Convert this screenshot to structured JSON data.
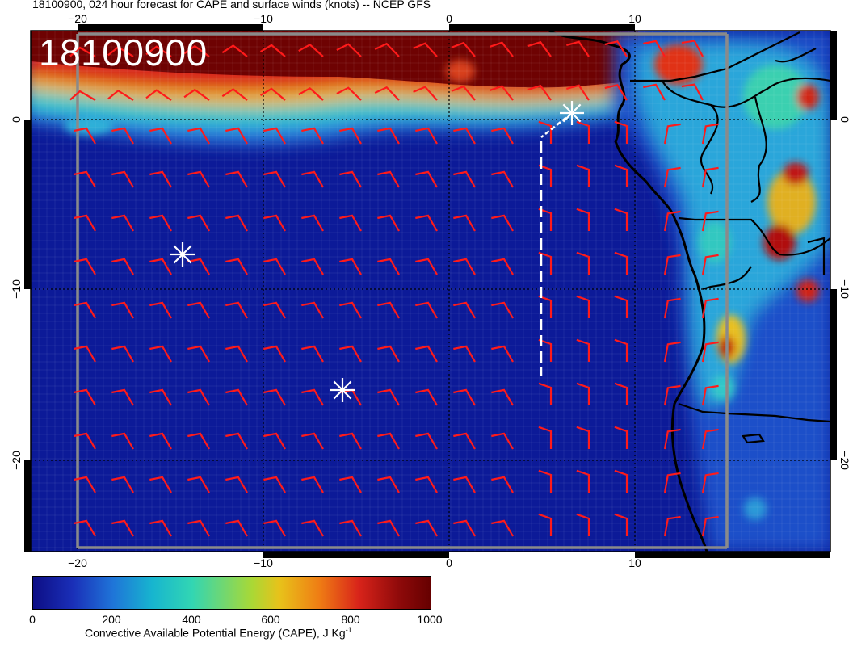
{
  "title": "18100900, 024 hour forecast for CAPE and surface winds (knots) -- NCEP GFS",
  "stamp": "18100900",
  "colorbar": {
    "labels": [
      "0",
      "200",
      "400",
      "600",
      "800",
      "1000"
    ],
    "title": "Convective Available Potential Energy (CAPE), J Kg",
    "title_sup": "-1"
  },
  "axes": {
    "x_ticks_top": [
      "−20",
      "−10",
      "0",
      "10"
    ],
    "x_ticks_bottom": [
      "−20",
      "−10",
      "0",
      "10"
    ],
    "y_ticks_left": [
      "0",
      "−10",
      "−20"
    ],
    "y_ticks_right": [
      "0",
      "−10",
      "−20"
    ]
  },
  "markers": [
    "star",
    "star",
    "star"
  ],
  "colors": {
    "wind_barbs": "#ff1a1a",
    "coast": "#000000",
    "track": "#ffffff"
  }
}
